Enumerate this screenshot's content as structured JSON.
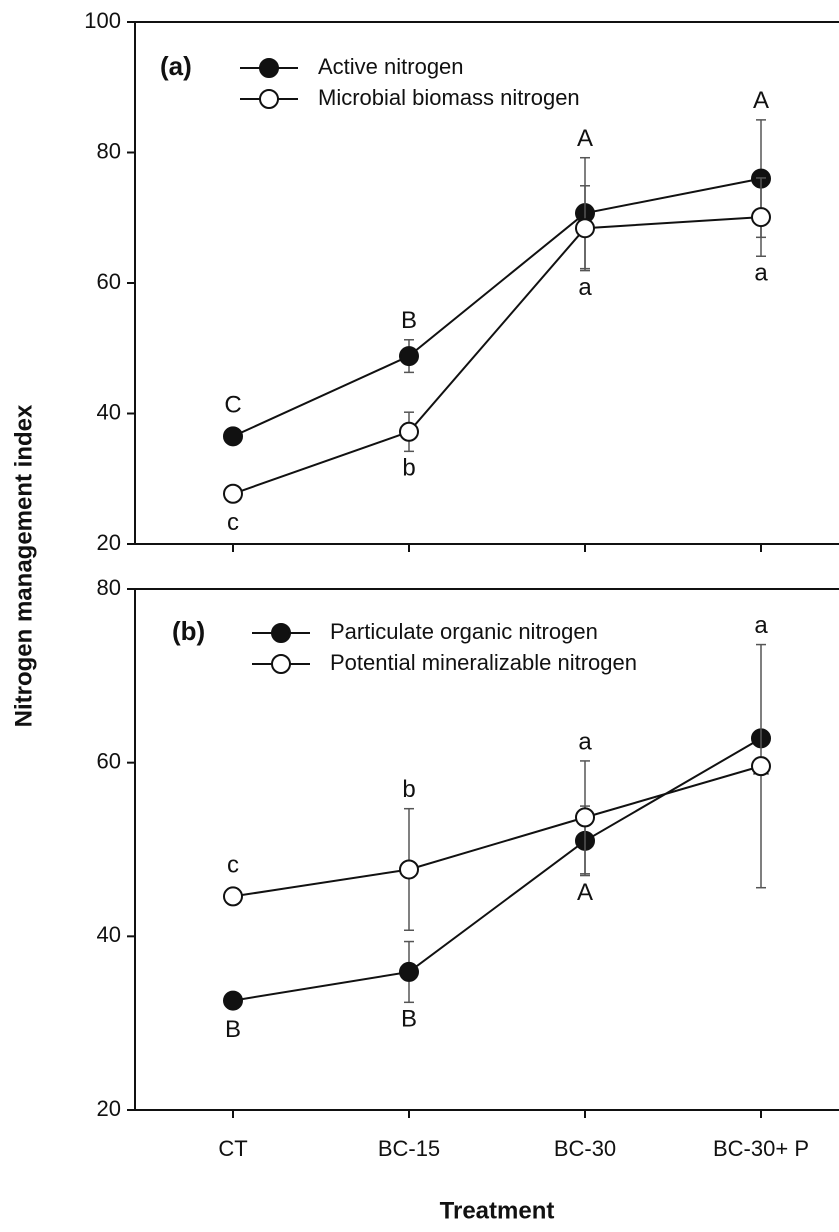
{
  "chart_data": [
    {
      "type": "line",
      "panel_label": "(a)",
      "y_label": "Nitrogen management index",
      "categories": [
        "CT",
        "BC-15",
        "BC-30",
        "BC-30+ P"
      ],
      "ylim": [
        20,
        100
      ],
      "yticks": [
        20,
        40,
        60,
        80,
        100
      ],
      "series": [
        {
          "name": "Active nitrogen",
          "color": "#111111",
          "marker": "filled",
          "values": [
            36.5,
            48.8,
            70.7,
            76
          ],
          "errors": [
            0,
            2.5,
            8.5,
            9
          ],
          "letters": [
            "C",
            "B",
            "A",
            "A"
          ]
        },
        {
          "name": "Microbial biomass nitrogen",
          "color": "#ffffff",
          "marker": "open",
          "values": [
            27.7,
            37.2,
            68.4,
            70.1
          ],
          "errors": [
            0,
            3,
            6.5,
            6
          ],
          "letters": [
            "c",
            "b",
            "a",
            "a"
          ]
        }
      ]
    },
    {
      "type": "line",
      "panel_label": "(b)",
      "x_label": "Treatment",
      "categories": [
        "CT",
        "BC-15",
        "BC-30",
        "BC-30+ P"
      ],
      "ylim": [
        20,
        80
      ],
      "yticks": [
        20,
        40,
        60,
        80
      ],
      "series": [
        {
          "name": "Particulate organic nitrogen",
          "color": "#111111",
          "marker": "filled",
          "values": [
            32.6,
            35.9,
            51,
            62.8
          ],
          "errors": [
            0,
            3.5,
            4,
            0
          ],
          "letters": [
            "B",
            "B",
            "A",
            "A"
          ]
        },
        {
          "name": "Potential mineralizable nitrogen",
          "color": "#ffffff",
          "marker": "open",
          "values": [
            44.6,
            47.7,
            53.7,
            59.6
          ],
          "errors": [
            0,
            7,
            6.5,
            14
          ],
          "letters": [
            "c",
            "b",
            "a",
            "a"
          ]
        }
      ]
    }
  ]
}
